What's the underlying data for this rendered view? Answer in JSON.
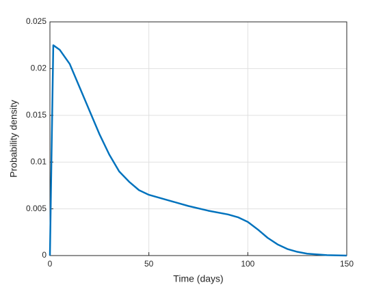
{
  "chart_data": {
    "type": "line",
    "xlabel": "Time (days)",
    "ylabel": "Probability density",
    "x": [
      0,
      1.7,
      5,
      10,
      15,
      20,
      25,
      30,
      35,
      40,
      45,
      50,
      60,
      70,
      80,
      90,
      95,
      100,
      105,
      110,
      115,
      120,
      125,
      130,
      140,
      150
    ],
    "series": [
      {
        "color": "#0072bd",
        "values": [
          0,
          0.0225,
          0.022,
          0.0205,
          0.018,
          0.0155,
          0.013,
          0.0108,
          0.009,
          0.0079,
          0.007,
          0.0065,
          0.0059,
          0.0053,
          0.0048,
          0.0044,
          0.0041,
          0.0036,
          0.0028,
          0.0019,
          0.0012,
          0.0007,
          0.0004,
          0.0002,
          5e-05,
          0
        ]
      }
    ],
    "xlim": [
      0,
      150
    ],
    "xticks": [
      0,
      50,
      100,
      150
    ],
    "ylim": [
      0,
      0.025
    ],
    "yticks": [
      0,
      0.005,
      0.01,
      0.015,
      0.02,
      0.025
    ],
    "grid": true
  }
}
